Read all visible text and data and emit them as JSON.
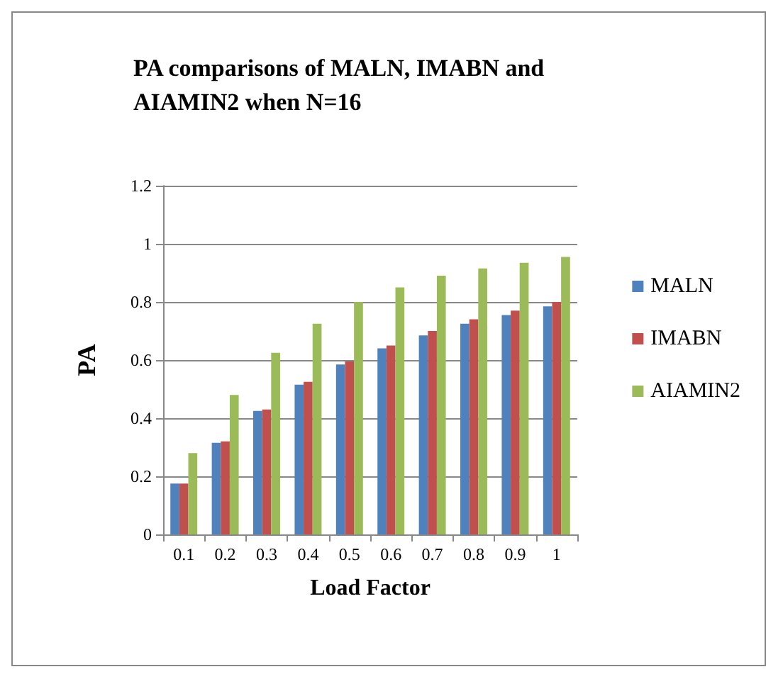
{
  "chart_data": {
    "type": "bar",
    "title": "PA comparisons of MALN, IMABN and AIAMIN2 when N=16",
    "xlabel": "Load Factor",
    "ylabel": "PA",
    "categories": [
      "0.1",
      "0.2",
      "0.3",
      "0.4",
      "0.5",
      "0.6",
      "0.7",
      "0.8",
      "0.9",
      "1"
    ],
    "series": [
      {
        "name": "MALN",
        "color": "#4f81bd",
        "values": [
          0.175,
          0.315,
          0.425,
          0.515,
          0.585,
          0.64,
          0.685,
          0.725,
          0.755,
          0.785
        ]
      },
      {
        "name": "IMABN",
        "color": "#c0504d",
        "values": [
          0.175,
          0.32,
          0.43,
          0.525,
          0.595,
          0.65,
          0.7,
          0.74,
          0.77,
          0.8
        ]
      },
      {
        "name": "AIAMIN2",
        "color": "#9bbb59",
        "values": [
          0.28,
          0.48,
          0.625,
          0.725,
          0.8,
          0.85,
          0.89,
          0.915,
          0.935,
          0.955
        ]
      }
    ],
    "ylim": [
      0,
      1.2
    ],
    "yticks": [
      0,
      0.2,
      0.4,
      0.6,
      0.8,
      1,
      1.2
    ],
    "grid": "y",
    "legend": "right"
  }
}
